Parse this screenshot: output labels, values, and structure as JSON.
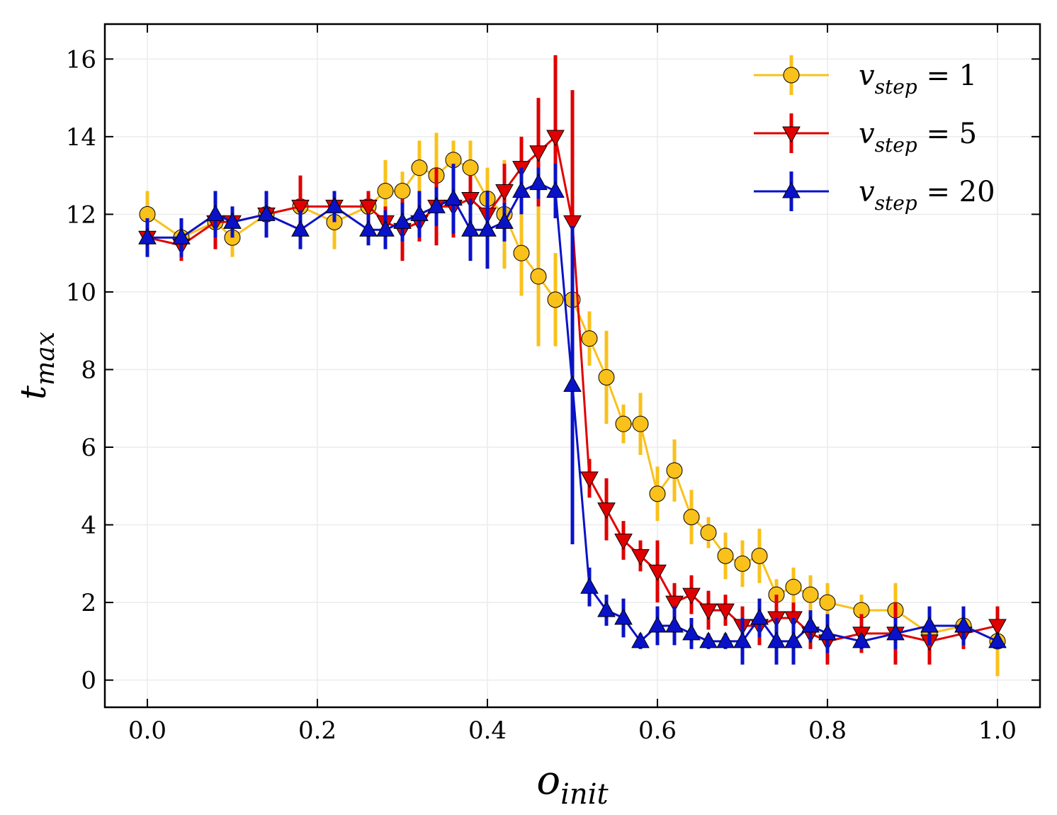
{
  "chart_data": {
    "type": "line",
    "xlabel": "o_init",
    "ylabel": "t_max",
    "xlim": [
      -0.05,
      1.05
    ],
    "ylim": [
      -0.7,
      16.9
    ],
    "xticks": [
      0.0,
      0.2,
      0.4,
      0.6,
      0.8,
      1.0
    ],
    "xtick_labels": [
      "0.0",
      "0.2",
      "0.4",
      "0.6",
      "0.8",
      "1.0"
    ],
    "yticks": [
      0,
      2,
      4,
      6,
      8,
      10,
      12,
      14,
      16
    ],
    "ytick_labels": [
      "0",
      "2",
      "4",
      "6",
      "8",
      "10",
      "12",
      "14",
      "16"
    ],
    "grid": true,
    "legend_position": "top-right",
    "x": [
      0.0,
      0.04,
      0.08,
      0.1,
      0.14,
      0.18,
      0.22,
      0.26,
      0.28,
      0.3,
      0.32,
      0.34,
      0.36,
      0.38,
      0.4,
      0.42,
      0.44,
      0.46,
      0.48,
      0.5,
      0.52,
      0.54,
      0.56,
      0.58,
      0.6,
      0.62,
      0.64,
      0.66,
      0.68,
      0.7,
      0.72,
      0.74,
      0.76,
      0.78,
      0.8,
      0.84,
      0.88,
      0.92,
      0.96,
      1.0
    ],
    "series": [
      {
        "name": "v_step = 1",
        "legend_main": "v",
        "legend_sub": "step",
        "legend_value": " = 1",
        "marker": "circle",
        "color": "#f9c11a",
        "values": [
          12.0,
          11.4,
          11.8,
          11.4,
          12.0,
          12.2,
          11.8,
          12.2,
          12.6,
          12.6,
          13.2,
          13.0,
          13.4,
          13.2,
          12.4,
          12.0,
          11.0,
          10.4,
          9.8,
          9.8,
          8.8,
          7.8,
          6.6,
          6.6,
          4.8,
          5.4,
          4.2,
          3.8,
          3.2,
          3.0,
          3.2,
          2.2,
          2.4,
          2.2,
          2.0,
          1.8,
          1.8,
          1.2,
          1.4,
          1.0
        ],
        "errors": [
          0.6,
          0.4,
          0.5,
          0.5,
          0.5,
          0.4,
          0.7,
          0.4,
          0.8,
          0.5,
          0.7,
          1.1,
          0.5,
          0.7,
          0.8,
          1.4,
          1.1,
          1.8,
          1.2,
          0.6,
          0.7,
          1.2,
          0.5,
          0.8,
          0.7,
          0.8,
          0.7,
          0.4,
          0.6,
          0.6,
          0.7,
          0.4,
          0.5,
          0.5,
          0.5,
          0.4,
          0.7,
          0.3,
          0.3,
          0.9
        ]
      },
      {
        "name": "v_step = 5",
        "legend_main": "v",
        "legend_sub": "step",
        "legend_value": " = 5",
        "marker": "triangle-down",
        "color": "#e00000",
        "values": [
          11.4,
          11.2,
          11.8,
          11.8,
          12.0,
          12.2,
          12.2,
          12.2,
          11.8,
          11.6,
          11.8,
          12.2,
          12.2,
          12.4,
          12.0,
          12.6,
          13.2,
          13.6,
          14.0,
          11.8,
          5.2,
          4.4,
          3.6,
          3.2,
          2.8,
          2.0,
          2.2,
          1.8,
          1.8,
          1.4,
          1.4,
          1.6,
          1.6,
          1.2,
          1.0,
          1.2,
          1.2,
          1.0,
          1.2,
          1.4
        ],
        "errors": [
          0.3,
          0.4,
          0.7,
          0.4,
          0.3,
          0.8,
          0.4,
          0.4,
          0.4,
          0.8,
          0.5,
          1.0,
          0.8,
          0.6,
          0.5,
          0.7,
          0.8,
          1.4,
          2.1,
          3.4,
          0.5,
          0.8,
          0.5,
          0.4,
          0.8,
          0.5,
          0.5,
          0.5,
          0.4,
          0.5,
          0.5,
          0.6,
          0.4,
          0.4,
          0.6,
          0.5,
          0.8,
          0.6,
          0.4,
          0.5
        ]
      },
      {
        "name": "v_step = 20",
        "legend_main": "v",
        "legend_sub": "step",
        "legend_value": " = 20",
        "marker": "triangle-up",
        "color": "#0a12c8",
        "values": [
          11.4,
          11.4,
          12.0,
          11.8,
          12.0,
          11.6,
          12.2,
          11.6,
          11.6,
          11.8,
          12.0,
          12.2,
          12.4,
          11.6,
          11.6,
          11.8,
          12.6,
          12.8,
          12.6,
          7.6,
          2.4,
          1.8,
          1.6,
          1.0,
          1.4,
          1.4,
          1.2,
          1.0,
          1.0,
          1.0,
          1.6,
          1.0,
          1.0,
          1.4,
          1.2,
          1.0,
          1.2,
          1.4,
          1.4,
          1.0
        ],
        "errors": [
          0.5,
          0.5,
          0.6,
          0.4,
          0.6,
          0.5,
          0.4,
          0.4,
          0.5,
          0.5,
          0.6,
          0.5,
          0.9,
          0.8,
          1.0,
          0.5,
          0.6,
          0.4,
          0.7,
          4.1,
          0.5,
          0.4,
          0.5,
          0.2,
          0.5,
          0.5,
          0.4,
          0.2,
          0.2,
          0.6,
          0.5,
          0.6,
          0.6,
          0.4,
          0.5,
          0.2,
          0.4,
          0.5,
          0.5,
          0.2
        ]
      }
    ]
  }
}
